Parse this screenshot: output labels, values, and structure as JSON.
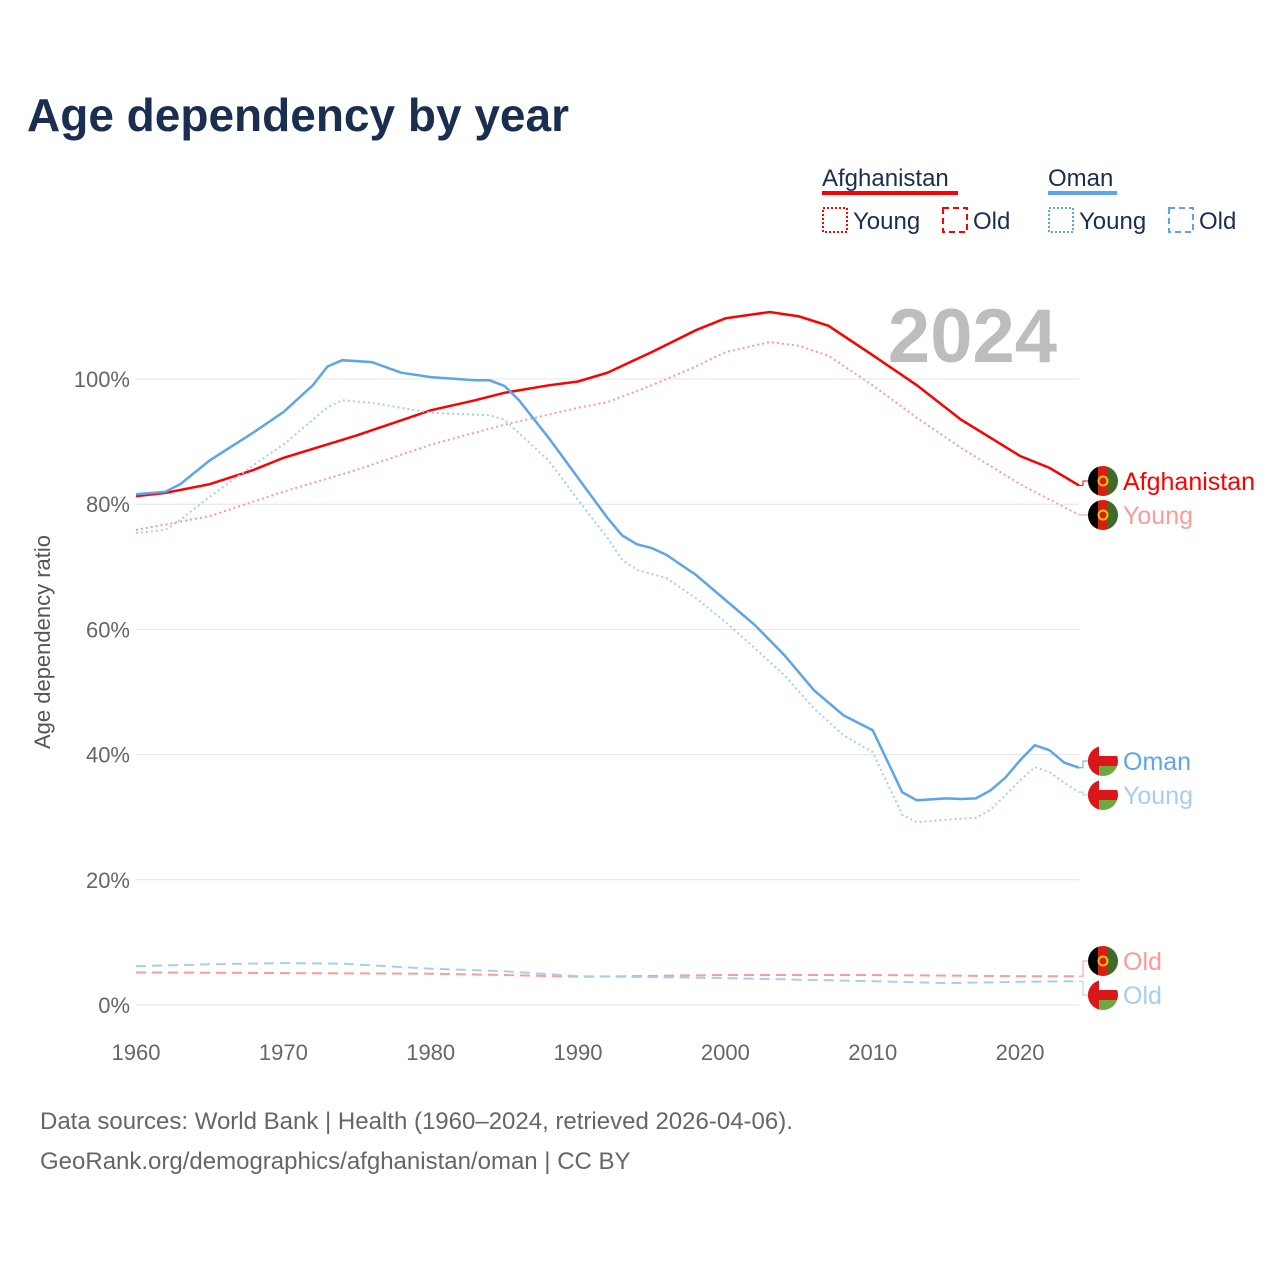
{
  "title": "Age dependency by year",
  "sources": {
    "line1": "Data sources: World Bank | Health (1960–2024, retrieved 2026-04-06).",
    "line2": "GeoRank.org/demographics/afghanistan/oman | CC BY"
  },
  "chart_data": {
    "type": "line",
    "title": "Age dependency by year",
    "ylabel": "Age dependency ratio",
    "xlabel": "",
    "xlim": [
      1960,
      2024
    ],
    "ylim": [
      0,
      110
    ],
    "x_ticks": [
      "1960",
      "1970",
      "1980",
      "1990",
      "2000",
      "2010",
      "2020"
    ],
    "y_ticks": [
      "0%",
      "20%",
      "40%",
      "60%",
      "80%",
      "100%"
    ],
    "grid": true,
    "year_watermark": "2024",
    "legend": {
      "placement": "top-right",
      "groups": [
        {
          "country": "Afghanistan",
          "color": "#ff0000",
          "items": [
            "Young",
            "Old"
          ]
        },
        {
          "country": "Oman",
          "color": "#5da5ea",
          "items": [
            "Young",
            "Old"
          ]
        }
      ]
    },
    "series": [
      {
        "name": "Afghanistan",
        "end_label": "Afghanistan",
        "style": "solid",
        "color": "#ff0000",
        "flag": "afghanistan-flag",
        "points": [
          [
            1960,
            81.3
          ],
          [
            1962,
            81.8
          ],
          [
            1965,
            83.2
          ],
          [
            1968,
            85.5
          ],
          [
            1970,
            87.4
          ],
          [
            1975,
            91
          ],
          [
            1980,
            95
          ],
          [
            1983,
            96.6
          ],
          [
            1985,
            97.8
          ],
          [
            1988,
            99
          ],
          [
            1990,
            99.6
          ],
          [
            1992,
            101
          ],
          [
            1995,
            104.3
          ],
          [
            1998,
            107.8
          ],
          [
            2000,
            109.7
          ],
          [
            2003,
            110.7
          ],
          [
            2005,
            110
          ],
          [
            2007,
            108.5
          ],
          [
            2010,
            103.8
          ],
          [
            2013,
            99
          ],
          [
            2016,
            93.5
          ],
          [
            2018,
            90.6
          ],
          [
            2020,
            87.7
          ],
          [
            2022,
            85.8
          ],
          [
            2024,
            83
          ]
        ]
      },
      {
        "name": "Afghanistan Young",
        "end_label": "Young",
        "style": "dotted",
        "color": "#ff9a9a",
        "flag": "afghanistan-flag",
        "points": [
          [
            1960,
            75.9
          ],
          [
            1965,
            78.1
          ],
          [
            1970,
            82
          ],
          [
            1975,
            85.5
          ],
          [
            1980,
            89.5
          ],
          [
            1985,
            92.7
          ],
          [
            1990,
            95.4
          ],
          [
            1992,
            96.3
          ],
          [
            1995,
            99
          ],
          [
            1998,
            102
          ],
          [
            2000,
            104.3
          ],
          [
            2003,
            105.9
          ],
          [
            2005,
            105.3
          ],
          [
            2007,
            103.7
          ],
          [
            2010,
            99
          ],
          [
            2013,
            93.8
          ],
          [
            2016,
            89
          ],
          [
            2020,
            83.2
          ],
          [
            2024,
            78.3
          ]
        ]
      },
      {
        "name": "Oman",
        "end_label": "Oman",
        "style": "solid",
        "color": "#5da5ea",
        "flag": "oman-flag",
        "points": [
          [
            1960,
            81.6
          ],
          [
            1962,
            82
          ],
          [
            1963,
            83.2
          ],
          [
            1965,
            87
          ],
          [
            1968,
            91.5
          ],
          [
            1970,
            94.7
          ],
          [
            1972,
            99
          ],
          [
            1973,
            102
          ],
          [
            1974,
            103
          ],
          [
            1976,
            102.7
          ],
          [
            1978,
            101
          ],
          [
            1980,
            100.3
          ],
          [
            1983,
            99.8
          ],
          [
            1984,
            99.8
          ],
          [
            1985,
            98.9
          ],
          [
            1986,
            96.6
          ],
          [
            1988,
            90.6
          ],
          [
            1990,
            84.2
          ],
          [
            1992,
            77.8
          ],
          [
            1993,
            75
          ],
          [
            1994,
            73.6
          ],
          [
            1995,
            73
          ],
          [
            1996,
            71.9
          ],
          [
            1998,
            68.7
          ],
          [
            2000,
            64.7
          ],
          [
            2002,
            60.7
          ],
          [
            2004,
            55.9
          ],
          [
            2006,
            50.3
          ],
          [
            2008,
            46.3
          ],
          [
            2010,
            43.9
          ],
          [
            2012,
            34
          ],
          [
            2013,
            32.7
          ],
          [
            2015,
            33
          ],
          [
            2016,
            32.9
          ],
          [
            2017,
            33
          ],
          [
            2018,
            34.3
          ],
          [
            2019,
            36.3
          ],
          [
            2020,
            39.1
          ],
          [
            2021,
            41.5
          ],
          [
            2022,
            40.7
          ],
          [
            2023,
            38.7
          ],
          [
            2024,
            37.9
          ]
        ]
      },
      {
        "name": "Oman Young",
        "end_label": "Young",
        "style": "dotted",
        "color": "#a9cdf2",
        "flag": "oman-flag",
        "points": [
          [
            1960,
            75.4
          ],
          [
            1962,
            75.9
          ],
          [
            1963,
            77.5
          ],
          [
            1965,
            81.2
          ],
          [
            1968,
            86.3
          ],
          [
            1970,
            89.5
          ],
          [
            1972,
            93.5
          ],
          [
            1973,
            95.5
          ],
          [
            1974,
            96.6
          ],
          [
            1976,
            96.2
          ],
          [
            1980,
            94.6
          ],
          [
            1984,
            94.2
          ],
          [
            1985,
            93.5
          ],
          [
            1988,
            87
          ],
          [
            1990,
            80.7
          ],
          [
            1992,
            74.6
          ],
          [
            1993,
            71.1
          ],
          [
            1994,
            69.5
          ],
          [
            1996,
            68.2
          ],
          [
            1998,
            65
          ],
          [
            2000,
            61.2
          ],
          [
            2002,
            57
          ],
          [
            2004,
            52.7
          ],
          [
            2006,
            47.4
          ],
          [
            2008,
            43.1
          ],
          [
            2010,
            40.4
          ],
          [
            2012,
            30.4
          ],
          [
            2013,
            29.2
          ],
          [
            2015,
            29.6
          ],
          [
            2017,
            29.9
          ],
          [
            2018,
            31.2
          ],
          [
            2019,
            33.5
          ],
          [
            2020,
            35.9
          ],
          [
            2021,
            38
          ],
          [
            2022,
            37.2
          ],
          [
            2023,
            35.5
          ],
          [
            2024,
            34
          ]
        ]
      },
      {
        "name": "Afghanistan Old",
        "end_label": "Old",
        "style": "dashed",
        "color": "#ff9a9a",
        "flag": "afghanistan-flag",
        "points": [
          [
            1960,
            5.2
          ],
          [
            1970,
            5.1
          ],
          [
            1980,
            5
          ],
          [
            1985,
            4.8
          ],
          [
            1990,
            4.5
          ],
          [
            2000,
            4.8
          ],
          [
            2010,
            4.8
          ],
          [
            2020,
            4.6
          ],
          [
            2024,
            4.6
          ]
        ]
      },
      {
        "name": "Oman Old",
        "end_label": "Old",
        "style": "dashed",
        "color": "#a9cdf2",
        "flag": "oman-flag",
        "points": [
          [
            1960,
            6.2
          ],
          [
            1965,
            6.5
          ],
          [
            1970,
            6.7
          ],
          [
            1974,
            6.6
          ],
          [
            1980,
            5.8
          ],
          [
            1985,
            5.4
          ],
          [
            1990,
            4.6
          ],
          [
            2000,
            4.3
          ],
          [
            2010,
            3.8
          ],
          [
            2015,
            3.5
          ],
          [
            2020,
            3.7
          ],
          [
            2024,
            3.8
          ]
        ]
      }
    ]
  }
}
